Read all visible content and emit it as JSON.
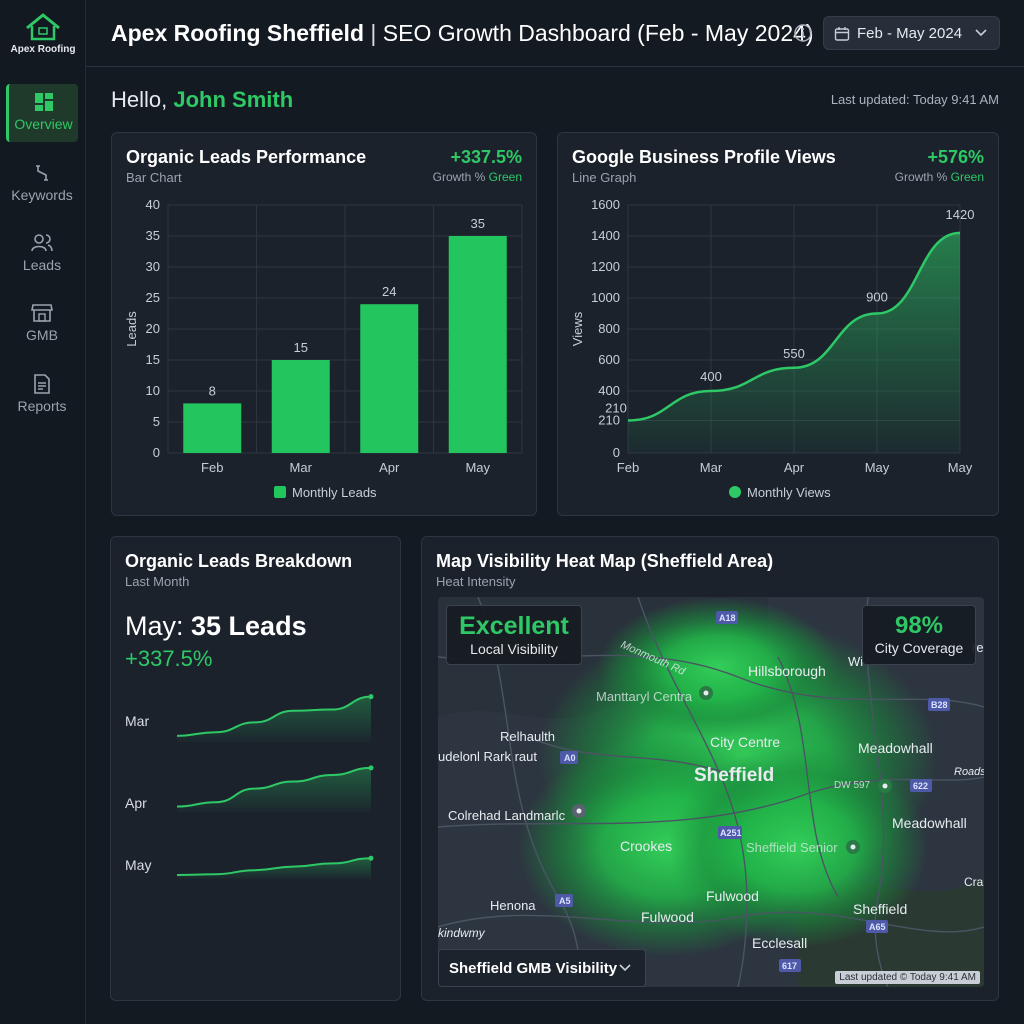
{
  "brand": {
    "name": "Apex Roofing"
  },
  "sidebar": {
    "items": [
      {
        "label": "Overview",
        "icon": "dashboard-icon",
        "active": true
      },
      {
        "label": "Keywords",
        "icon": "route-icon",
        "active": false
      },
      {
        "label": "Leads",
        "icon": "users-icon",
        "active": false
      },
      {
        "label": "GMB",
        "icon": "storefront-icon",
        "active": false
      },
      {
        "label": "Reports",
        "icon": "document-icon",
        "active": false
      }
    ]
  },
  "header": {
    "title_bold": "Apex Roofing Sheffield",
    "title_sep": " | ",
    "title_rest": "SEO Growth Dashboard (Feb - May 2024)",
    "date_range": "Feb - May 2024"
  },
  "greeting": {
    "prefix": "Hello, ",
    "name": "John Smith"
  },
  "last_updated": "Last updated: Today 9:41 AM",
  "leads_card": {
    "title": "Organic Leads Performance",
    "subtitle": "Bar Chart",
    "growth": "+337.5%",
    "growth_label": "Growth % ",
    "growth_color_word": "Green",
    "legend": "Monthly Leads"
  },
  "views_card": {
    "title": "Google Business Profile Views",
    "subtitle": "Line Graph",
    "growth": "+576%",
    "growth_label": "Growth % ",
    "growth_color_word": "Green",
    "legend": "Monthly Views"
  },
  "breakdown_card": {
    "title": "Organic Leads Breakdown",
    "subtitle": "Last Month",
    "month": "May: ",
    "leads": "35 Leads",
    "growth": "+337.5%",
    "sparklines": [
      {
        "label": "Mar"
      },
      {
        "label": "Apr"
      },
      {
        "label": "May"
      }
    ]
  },
  "map_card": {
    "title": "Map Visibility Heat Map (Sheffield Area)",
    "subtitle": "Heat Intensity",
    "badge_left_big": "Excellent",
    "badge_left_small": "Local Visibility",
    "badge_right_big": "98%",
    "badge_right_small": "City Coverage",
    "select_label": "Sheffield GMB Visibility",
    "credit": "Last updated © Today 9:41 AM",
    "places": {
      "hillsborough": "Hillsborough",
      "manor": "Manttaryl Centra",
      "relhaulth": "Relhaulth",
      "udelonl": "udelonl Rark raut",
      "city_centre": "City Centre",
      "sheffield": "Sheffield",
      "meadowhall1": "Meadowhall",
      "meadowhall2": "Meadowhall",
      "colrehad": "Colrehad Landmarlc",
      "crookes": "Crookes",
      "sheffield_senior": "Sheffield Senior",
      "fulwood1": "Fulwood",
      "fulwood2": "Fulwood",
      "henona": "Henona",
      "sheffield2": "Sheffield",
      "ecclesall": "Ecclesall",
      "kindwmy": "kindwmy",
      "monmouth": "Monmouth Rd",
      "wi": "Wi",
      "roads": "Roads",
      "cra": "Cra",
      "dw": "DW 597",
      "re": "re"
    },
    "road_labels": {
      "a1": "A18",
      "a2": "A0",
      "a3": "B28",
      "a4": "622",
      "a5": "A251",
      "a6": "A5",
      "a7": "A65",
      "a8": "617"
    }
  },
  "colors": {
    "accent": "#2ec866",
    "bar": "#22c55e",
    "background": "#141a22",
    "card": "#1b222c"
  },
  "chart_data": [
    {
      "type": "bar",
      "title": "Organic Leads Performance",
      "categories": [
        "Feb",
        "Mar",
        "Apr",
        "May"
      ],
      "series": [
        {
          "name": "Monthly Leads",
          "values": [
            8,
            15,
            24,
            35
          ]
        }
      ],
      "ylabel": "Leads",
      "ylim": [
        0,
        40
      ],
      "yticks": [
        0,
        5,
        10,
        15,
        20,
        25,
        30,
        35,
        40
      ],
      "grid": true,
      "legend": "bottom"
    },
    {
      "type": "area",
      "title": "Google Business Profile Views",
      "categories": [
        "Feb",
        "Mar",
        "Apr",
        "May",
        "May"
      ],
      "series": [
        {
          "name": "Monthly Views",
          "values": [
            210,
            400,
            550,
            900,
            1420
          ]
        }
      ],
      "ylabel": "Views",
      "ylim": [
        0,
        1600
      ],
      "yticks": [
        0,
        210,
        400,
        600,
        800,
        1000,
        1200,
        1400,
        1600
      ],
      "grid": true,
      "legend": "bottom"
    },
    {
      "type": "line",
      "title": "Mar",
      "series": [
        {
          "values": [
            1,
            1.6,
            3.2,
            5.1,
            5.3,
            7.4
          ]
        }
      ],
      "ylim": [
        0,
        8
      ]
    },
    {
      "type": "line",
      "title": "Apr",
      "series": [
        {
          "values": [
            1,
            1.8,
            4.3,
            5.6,
            6.8,
            8.1
          ]
        }
      ],
      "ylim": [
        0,
        9
      ]
    },
    {
      "type": "line",
      "title": "May",
      "series": [
        {
          "values": [
            1,
            1.2,
            2.2,
            3.1,
            3.9,
            5.2
          ]
        }
      ],
      "ylim": [
        0,
        9
      ]
    }
  ]
}
